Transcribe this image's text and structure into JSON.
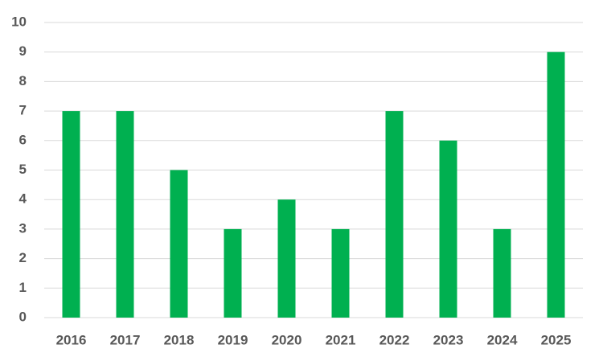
{
  "chart_data": {
    "type": "bar",
    "categories": [
      "2016",
      "2017",
      "2018",
      "2019",
      "2020",
      "2021",
      "2022",
      "2023",
      "2024",
      "2025"
    ],
    "values": [
      7,
      7,
      5,
      3,
      4,
      3,
      7,
      6,
      3,
      9
    ],
    "color": "#00b050",
    "ylim": [
      0,
      10
    ],
    "yticks": [
      0,
      1,
      2,
      3,
      4,
      5,
      6,
      7,
      8,
      9,
      10
    ],
    "grid": true
  }
}
